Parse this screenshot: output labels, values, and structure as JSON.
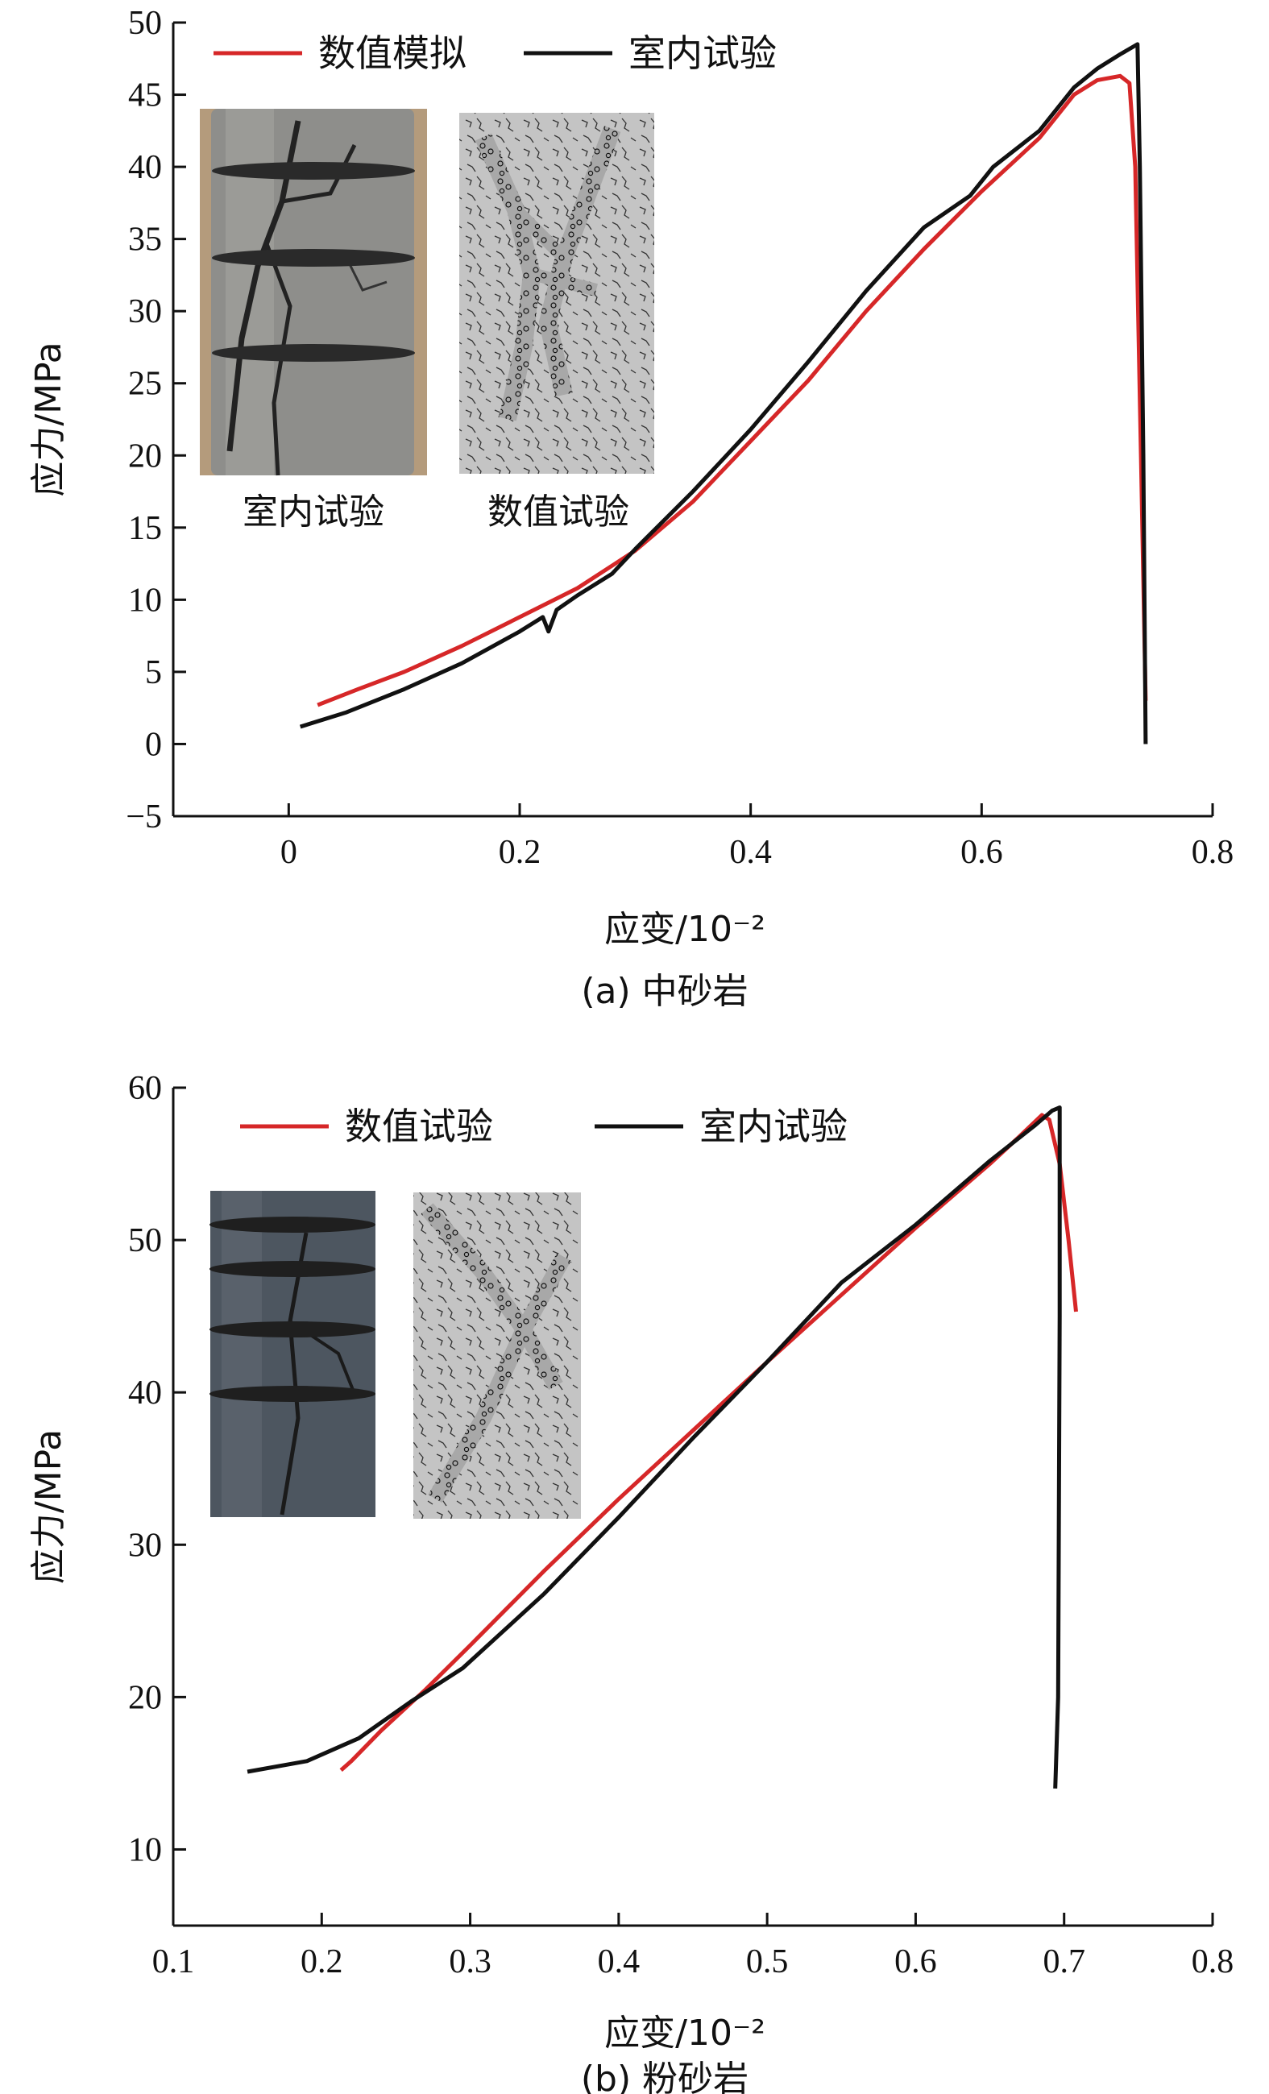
{
  "colors": {
    "numerical": "#d62728",
    "lab": "#111111",
    "rock_a": "#8e8e8b",
    "rock_b": "#4d5660",
    "sim_bg": "#bdbdbd"
  },
  "chart_data": [
    {
      "type": "line",
      "caption": "(a) 中砂岩",
      "xlabel": "应变/10⁻²",
      "ylabel": "应力/MPa",
      "xlim": [
        -0.1,
        0.8
      ],
      "ylim": [
        -5,
        50
      ],
      "xticks": [
        0,
        0.2,
        0.4,
        0.6,
        0.8
      ],
      "xtick_labels": [
        "0",
        "0.2",
        "0.4",
        "0.6",
        "0.8"
      ],
      "yticks": [
        -5,
        0,
        5,
        10,
        15,
        20,
        25,
        30,
        35,
        40,
        45,
        50
      ],
      "ytick_labels": [
        "−5",
        "0",
        "5",
        "10",
        "15",
        "20",
        "25",
        "30",
        "35",
        "40",
        "45",
        "50"
      ],
      "legend_position": "top-left",
      "series": [
        {
          "name": "数值模拟",
          "color_key": "numerical",
          "points": [
            [
              0.025,
              2.7
            ],
            [
              0.06,
              3.8
            ],
            [
              0.1,
              5.0
            ],
            [
              0.15,
              6.8
            ],
            [
              0.2,
              8.8
            ],
            [
              0.25,
              10.8
            ],
            [
              0.3,
              13.4
            ],
            [
              0.35,
              16.8
            ],
            [
              0.4,
              21.0
            ],
            [
              0.45,
              25.2
            ],
            [
              0.5,
              30.0
            ],
            [
              0.55,
              34.3
            ],
            [
              0.6,
              38.3
            ],
            [
              0.65,
              42.0
            ],
            [
              0.68,
              45.0
            ],
            [
              0.7,
              46.0
            ],
            [
              0.72,
              46.3
            ],
            [
              0.728,
              45.8
            ],
            [
              0.733,
              40.0
            ],
            [
              0.738,
              20.0
            ],
            [
              0.742,
              3.0
            ]
          ]
        },
        {
          "name": "室内试验",
          "color_key": "lab",
          "points": [
            [
              0.01,
              1.2
            ],
            [
              0.05,
              2.2
            ],
            [
              0.1,
              3.8
            ],
            [
              0.15,
              5.6
            ],
            [
              0.2,
              7.8
            ],
            [
              0.22,
              8.8
            ],
            [
              0.225,
              7.8
            ],
            [
              0.232,
              9.3
            ],
            [
              0.25,
              10.3
            ],
            [
              0.28,
              11.8
            ],
            [
              0.3,
              13.5
            ],
            [
              0.35,
              17.5
            ],
            [
              0.4,
              21.8
            ],
            [
              0.45,
              26.5
            ],
            [
              0.5,
              31.4
            ],
            [
              0.55,
              35.8
            ],
            [
              0.59,
              38.0
            ],
            [
              0.61,
              40.0
            ],
            [
              0.65,
              42.5
            ],
            [
              0.68,
              45.5
            ],
            [
              0.7,
              46.8
            ],
            [
              0.72,
              47.8
            ],
            [
              0.735,
              48.5
            ],
            [
              0.737,
              40.0
            ],
            [
              0.74,
              20.0
            ],
            [
              0.742,
              0.0
            ]
          ]
        }
      ],
      "inset_labels": [
        "室内试验",
        "数值试验"
      ]
    },
    {
      "type": "line",
      "caption": "(b) 粉砂岩",
      "xlabel": "应变/10⁻²",
      "ylabel": "应力/MPa",
      "xlim": [
        0.1,
        0.8
      ],
      "ylim": [
        5,
        60
      ],
      "xticks": [
        0.1,
        0.2,
        0.3,
        0.4,
        0.5,
        0.6,
        0.7,
        0.8
      ],
      "xtick_labels": [
        "0.1",
        "0.2",
        "0.3",
        "0.4",
        "0.5",
        "0.6",
        "0.7",
        "0.8"
      ],
      "yticks": [
        10,
        20,
        30,
        40,
        50,
        60
      ],
      "ytick_labels": [
        "10",
        "20",
        "30",
        "40",
        "50",
        "60"
      ],
      "legend_position": "top-left",
      "series": [
        {
          "name": "数值试验",
          "color_key": "numerical",
          "points": [
            [
              0.213,
              15.2
            ],
            [
              0.22,
              15.8
            ],
            [
              0.24,
              17.8
            ],
            [
              0.27,
              20.5
            ],
            [
              0.3,
              23.4
            ],
            [
              0.35,
              28.3
            ],
            [
              0.4,
              33.0
            ],
            [
              0.45,
              37.5
            ],
            [
              0.5,
              42.0
            ],
            [
              0.55,
              46.4
            ],
            [
              0.6,
              50.8
            ],
            [
              0.65,
              55.0
            ],
            [
              0.67,
              56.8
            ],
            [
              0.685,
              58.2
            ],
            [
              0.69,
              57.9
            ],
            [
              0.697,
              55.0
            ],
            [
              0.703,
              50.0
            ],
            [
              0.708,
              45.3
            ]
          ]
        },
        {
          "name": "室内试验",
          "color_key": "lab",
          "points": [
            [
              0.15,
              15.1
            ],
            [
              0.19,
              15.8
            ],
            [
              0.225,
              17.3
            ],
            [
              0.26,
              19.7
            ],
            [
              0.295,
              21.9
            ],
            [
              0.35,
              26.8
            ],
            [
              0.4,
              31.8
            ],
            [
              0.45,
              37.0
            ],
            [
              0.5,
              42.0
            ],
            [
              0.55,
              47.2
            ],
            [
              0.6,
              51.0
            ],
            [
              0.65,
              55.2
            ],
            [
              0.68,
              57.5
            ],
            [
              0.692,
              58.5
            ],
            [
              0.697,
              58.7
            ],
            [
              0.697,
              45.0
            ],
            [
              0.696,
              20.0
            ],
            [
              0.694,
              14.0
            ]
          ]
        }
      ]
    }
  ]
}
